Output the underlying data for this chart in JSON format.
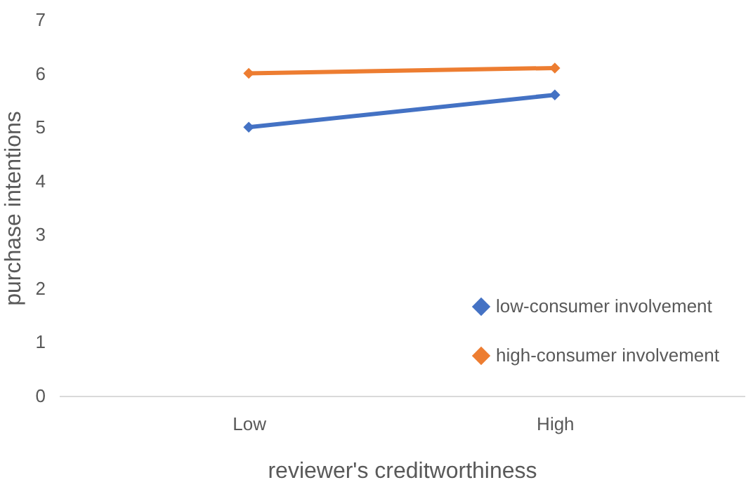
{
  "chart_data": {
    "type": "line",
    "xlabel": "reviewer's creditworthiness",
    "ylabel": "purchase intentions",
    "categories": [
      "Low",
      "High"
    ],
    "series": [
      {
        "name": "low-consumer involvement",
        "color": "#4472c4",
        "values": [
          5.0,
          5.6
        ]
      },
      {
        "name": "high-consumer involvement",
        "color": "#ed7d31",
        "values": [
          6.0,
          6.1
        ]
      }
    ],
    "ylim": [
      0,
      7
    ],
    "yticks": [
      0,
      1,
      2,
      3,
      4,
      5,
      6,
      7
    ],
    "legend": "bottom right",
    "marker": "diamond"
  }
}
